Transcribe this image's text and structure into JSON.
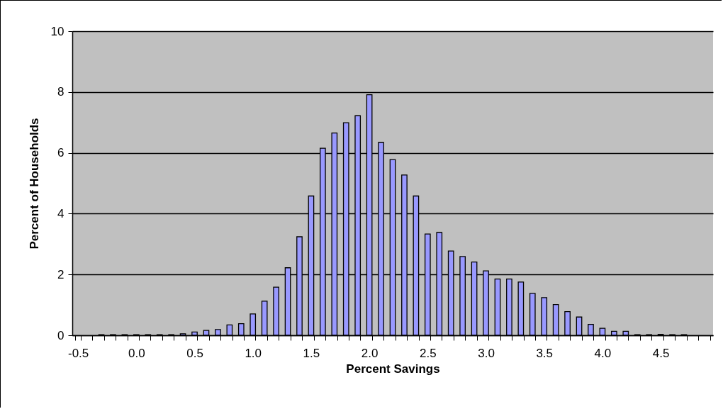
{
  "chart_data": {
    "type": "bar",
    "xlabel": "Percent Savings",
    "ylabel": "Percent of Households",
    "categories": [
      "-0.5",
      null,
      null,
      null,
      null,
      "0.0",
      null,
      null,
      null,
      null,
      "0.5",
      null,
      null,
      null,
      null,
      "1.0",
      null,
      null,
      null,
      null,
      "1.5",
      null,
      null,
      null,
      null,
      "2.0",
      null,
      null,
      null,
      null,
      "2.5",
      null,
      null,
      null,
      null,
      "3.0",
      null,
      null,
      null,
      null,
      "3.5",
      null,
      null,
      null,
      null,
      "4.0",
      null,
      null,
      null,
      null,
      "4.5",
      null,
      null,
      null,
      null
    ],
    "values": [
      null,
      null,
      0.02,
      0.02,
      0.02,
      0.02,
      0.02,
      0.02,
      0.02,
      0.05,
      0.11,
      0.16,
      0.19,
      0.34,
      0.38,
      0.7,
      1.12,
      1.58,
      2.22,
      3.24,
      4.58,
      6.15,
      6.65,
      6.99,
      7.22,
      7.91,
      6.34,
      5.78,
      5.27,
      4.58,
      3.33,
      3.38,
      2.77,
      2.59,
      2.41,
      2.12,
      1.85,
      1.85,
      1.75,
      1.38,
      1.24,
      1.01,
      0.78,
      0.6,
      0.36,
      0.23,
      0.13,
      0.13,
      0.02,
      0.02,
      0.03,
      0.02,
      0.02,
      null,
      null
    ],
    "color": "#9999ff",
    "ylim": [
      0,
      10
    ],
    "yticks": [
      0,
      2,
      4,
      6,
      8,
      10
    ],
    "grid": "y"
  }
}
